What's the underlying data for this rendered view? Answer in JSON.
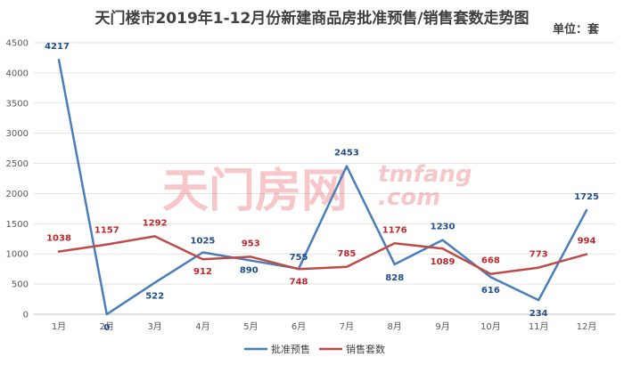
{
  "header": {
    "title": "天门楼市2019年1-12月份新建商品房批准预售/销售套数走势图",
    "unit": "单位：套"
  },
  "watermark": {
    "cn": "天门房网",
    "en_top": "tmfang",
    "en_bottom": ".com",
    "color": "#e8474d"
  },
  "chart_data": {
    "type": "line",
    "categories": [
      "1月",
      "2月",
      "3月",
      "4月",
      "5月",
      "6月",
      "7月",
      "8月",
      "9月",
      "10月",
      "11月",
      "12月"
    ],
    "series": [
      {
        "name": "批准预售",
        "color": "#4a7ebb",
        "label_color": "#1f4e8c",
        "values": [
          4217,
          0,
          522,
          1025,
          890,
          755,
          2453,
          828,
          1230,
          616,
          234,
          1725
        ]
      },
      {
        "name": "销售套数",
        "color": "#be4b48",
        "label_color": "#c0272d",
        "values": [
          1038,
          1157,
          1292,
          912,
          953,
          748,
          785,
          1176,
          1089,
          668,
          773,
          994
        ]
      }
    ],
    "ylim": [
      0,
      4500
    ],
    "yticks": [
      0,
      500,
      1000,
      1500,
      2000,
      2500,
      3000,
      3500,
      4000,
      4500
    ],
    "grid": true,
    "legend_position": "bottom"
  }
}
